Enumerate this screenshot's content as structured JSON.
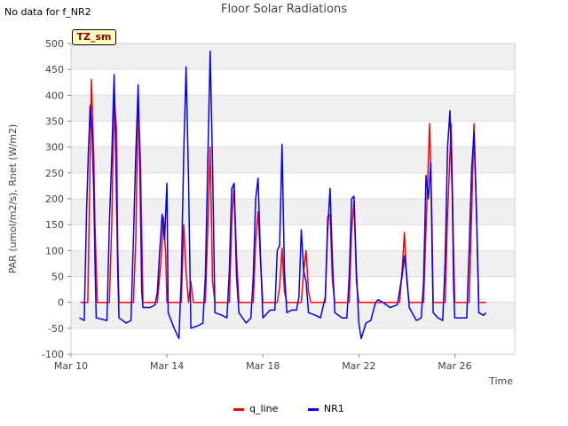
{
  "header": {
    "nodata": "No data for f_NR2",
    "tz_label": "TZ_sm"
  },
  "chart_data": {
    "type": "line",
    "title": "Floor Solar Radiations",
    "xlabel": "Time",
    "ylabel": "PAR (umol/m2/s), Rnet (W/m2)",
    "ylim": [
      -100,
      500
    ],
    "yticks": [
      -100,
      -50,
      0,
      50,
      100,
      150,
      200,
      250,
      300,
      350,
      400,
      450,
      500
    ],
    "xlim": [
      10,
      28.5
    ],
    "xticks": [
      {
        "value": 10,
        "label": "Mar 10"
      },
      {
        "value": 14,
        "label": "Mar 14"
      },
      {
        "value": 18,
        "label": "Mar 18"
      },
      {
        "value": 22,
        "label": "Mar 22"
      },
      {
        "value": 26,
        "label": "Mar 26"
      }
    ],
    "grid": true,
    "legend_position": "bottom",
    "series": [
      {
        "name": "q_line",
        "color": "#ff0000",
        "points": [
          [
            10.4,
            0
          ],
          [
            10.7,
            0
          ],
          [
            10.75,
            140
          ],
          [
            10.85,
            430
          ],
          [
            10.95,
            280
          ],
          [
            11.0,
            150
          ],
          [
            11.1,
            0
          ],
          [
            11.6,
            0
          ],
          [
            11.7,
            150
          ],
          [
            11.8,
            400
          ],
          [
            11.9,
            330
          ],
          [
            11.95,
            100
          ],
          [
            12.0,
            0
          ],
          [
            12.6,
            0
          ],
          [
            12.7,
            120
          ],
          [
            12.8,
            400
          ],
          [
            12.9,
            265
          ],
          [
            13.0,
            0
          ],
          [
            13.6,
            0
          ],
          [
            13.75,
            80
          ],
          [
            13.85,
            165
          ],
          [
            13.95,
            90
          ],
          [
            14.0,
            0
          ],
          [
            14.6,
            0
          ],
          [
            14.7,
            150
          ],
          [
            14.8,
            60
          ],
          [
            14.9,
            0
          ],
          [
            15.0,
            40
          ],
          [
            15.1,
            0
          ],
          [
            15.6,
            0
          ],
          [
            15.7,
            140
          ],
          [
            15.8,
            300
          ],
          [
            15.9,
            40
          ],
          [
            16.0,
            0
          ],
          [
            16.6,
            0
          ],
          [
            16.7,
            150
          ],
          [
            16.8,
            230
          ],
          [
            16.9,
            90
          ],
          [
            17.0,
            0
          ],
          [
            17.6,
            0
          ],
          [
            17.7,
            120
          ],
          [
            17.8,
            175
          ],
          [
            17.9,
            80
          ],
          [
            18.0,
            0
          ],
          [
            18.6,
            0
          ],
          [
            18.7,
            30
          ],
          [
            18.8,
            105
          ],
          [
            18.9,
            20
          ],
          [
            19.0,
            0
          ],
          [
            19.6,
            0
          ],
          [
            19.7,
            60
          ],
          [
            19.8,
            100
          ],
          [
            19.9,
            20
          ],
          [
            20.0,
            0
          ],
          [
            20.6,
            0
          ],
          [
            20.7,
            165
          ],
          [
            20.8,
            170
          ],
          [
            20.9,
            40
          ],
          [
            21.0,
            0
          ],
          [
            21.6,
            0
          ],
          [
            21.7,
            140
          ],
          [
            21.8,
            195
          ],
          [
            21.9,
            40
          ],
          [
            22.0,
            0
          ],
          [
            23.7,
            0
          ],
          [
            23.8,
            60
          ],
          [
            23.9,
            135
          ],
          [
            24.0,
            40
          ],
          [
            24.1,
            0
          ],
          [
            24.7,
            0
          ],
          [
            24.8,
            140
          ],
          [
            24.95,
            345
          ],
          [
            25.05,
            150
          ],
          [
            25.1,
            0
          ],
          [
            25.6,
            0
          ],
          [
            25.7,
            170
          ],
          [
            25.85,
            345
          ],
          [
            25.95,
            100
          ],
          [
            26.0,
            0
          ],
          [
            26.6,
            0
          ],
          [
            26.7,
            170
          ],
          [
            26.8,
            345
          ],
          [
            26.9,
            180
          ],
          [
            27.0,
            0
          ],
          [
            27.3,
            0
          ]
        ]
      },
      {
        "name": "NR1",
        "color": "#0000ff",
        "points": [
          [
            10.35,
            -30
          ],
          [
            10.55,
            -35
          ],
          [
            10.65,
            180
          ],
          [
            10.72,
            285
          ],
          [
            10.8,
            380
          ],
          [
            10.88,
            330
          ],
          [
            10.95,
            210
          ],
          [
            11.0,
            80
          ],
          [
            11.05,
            -30
          ],
          [
            11.5,
            -35
          ],
          [
            11.6,
            150
          ],
          [
            11.7,
            280
          ],
          [
            11.8,
            440
          ],
          [
            11.88,
            255
          ],
          [
            11.95,
            60
          ],
          [
            12.0,
            -30
          ],
          [
            12.3,
            -40
          ],
          [
            12.5,
            -35
          ],
          [
            12.6,
            120
          ],
          [
            12.7,
            285
          ],
          [
            12.8,
            420
          ],
          [
            12.88,
            240
          ],
          [
            12.95,
            20
          ],
          [
            13.0,
            -10
          ],
          [
            13.3,
            -10
          ],
          [
            13.5,
            -5
          ],
          [
            13.6,
            20
          ],
          [
            13.7,
            100
          ],
          [
            13.8,
            170
          ],
          [
            13.9,
            120
          ],
          [
            14.0,
            230
          ],
          [
            14.05,
            -20
          ],
          [
            14.3,
            -50
          ],
          [
            14.5,
            -70
          ],
          [
            14.6,
            50
          ],
          [
            14.7,
            285
          ],
          [
            14.8,
            455
          ],
          [
            14.9,
            240
          ],
          [
            15.0,
            -50
          ],
          [
            15.3,
            -45
          ],
          [
            15.5,
            -40
          ],
          [
            15.6,
            50
          ],
          [
            15.7,
            270
          ],
          [
            15.8,
            485
          ],
          [
            15.9,
            265
          ],
          [
            16.0,
            -20
          ],
          [
            16.3,
            -25
          ],
          [
            16.5,
            -30
          ],
          [
            16.6,
            60
          ],
          [
            16.7,
            220
          ],
          [
            16.8,
            230
          ],
          [
            16.9,
            50
          ],
          [
            17.0,
            -20
          ],
          [
            17.3,
            -40
          ],
          [
            17.5,
            -30
          ],
          [
            17.6,
            50
          ],
          [
            17.7,
            200
          ],
          [
            17.8,
            240
          ],
          [
            17.9,
            90
          ],
          [
            18.0,
            -30
          ],
          [
            18.3,
            -15
          ],
          [
            18.5,
            -15
          ],
          [
            18.6,
            100
          ],
          [
            18.7,
            110
          ],
          [
            18.8,
            305
          ],
          [
            18.9,
            60
          ],
          [
            19.0,
            -20
          ],
          [
            19.2,
            -15
          ],
          [
            19.4,
            -15
          ],
          [
            19.5,
            10
          ],
          [
            19.6,
            140
          ],
          [
            19.7,
            60
          ],
          [
            19.8,
            40
          ],
          [
            19.9,
            -20
          ],
          [
            20.2,
            -25
          ],
          [
            20.4,
            -30
          ],
          [
            20.6,
            10
          ],
          [
            20.7,
            140
          ],
          [
            20.8,
            220
          ],
          [
            20.9,
            80
          ],
          [
            21.0,
            -20
          ],
          [
            21.3,
            -30
          ],
          [
            21.5,
            -30
          ],
          [
            21.6,
            50
          ],
          [
            21.7,
            200
          ],
          [
            21.8,
            205
          ],
          [
            21.9,
            60
          ],
          [
            22.0,
            -40
          ],
          [
            22.1,
            -70
          ],
          [
            22.3,
            -40
          ],
          [
            22.5,
            -35
          ],
          [
            22.7,
            0
          ],
          [
            22.8,
            5
          ],
          [
            23.0,
            0
          ],
          [
            23.3,
            -10
          ],
          [
            23.6,
            -5
          ],
          [
            23.8,
            50
          ],
          [
            23.9,
            90
          ],
          [
            24.0,
            50
          ],
          [
            24.1,
            -10
          ],
          [
            24.4,
            -35
          ],
          [
            24.6,
            -30
          ],
          [
            24.7,
            40
          ],
          [
            24.8,
            245
          ],
          [
            24.9,
            200
          ],
          [
            25.0,
            270
          ],
          [
            25.05,
            100
          ],
          [
            25.1,
            -20
          ],
          [
            25.3,
            -30
          ],
          [
            25.5,
            -35
          ],
          [
            25.6,
            80
          ],
          [
            25.7,
            300
          ],
          [
            25.8,
            370
          ],
          [
            25.9,
            200
          ],
          [
            25.95,
            30
          ],
          [
            26.0,
            -30
          ],
          [
            26.3,
            -30
          ],
          [
            26.5,
            -30
          ],
          [
            26.6,
            100
          ],
          [
            26.7,
            255
          ],
          [
            26.8,
            330
          ],
          [
            26.9,
            180
          ],
          [
            27.0,
            -20
          ],
          [
            27.2,
            -25
          ],
          [
            27.3,
            -20
          ]
        ]
      }
    ]
  }
}
